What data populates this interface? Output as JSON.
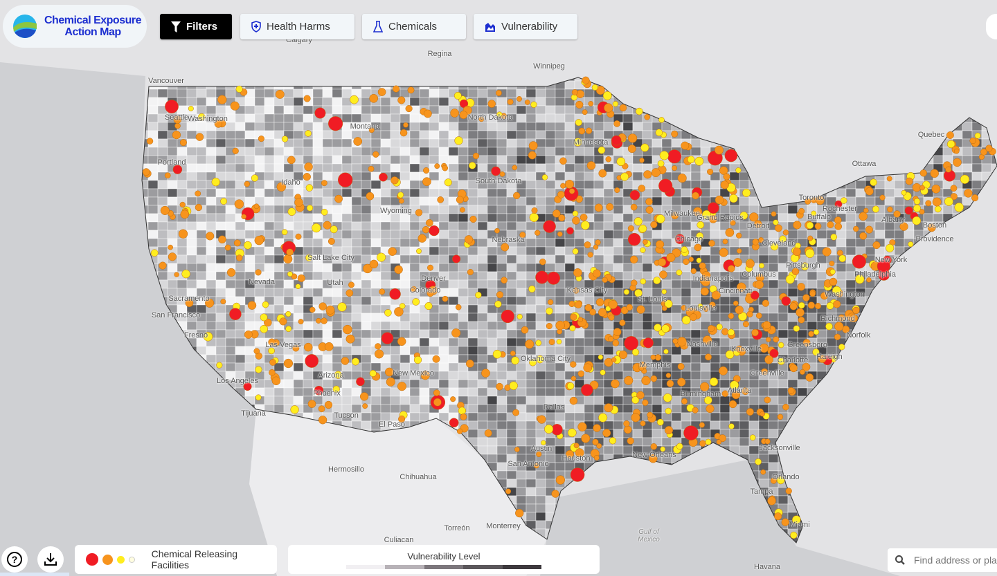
{
  "app": {
    "title_line1": "Chemical Exposure",
    "title_line2": "Action Map"
  },
  "toolbar": {
    "filters": "Filters",
    "health_harms": "Health Harms",
    "chemicals": "Chemicals",
    "vulnerability": "Vulnerability"
  },
  "legend": {
    "facilities_label": "Chemical Releasing Facilities",
    "facility_colors": [
      "#f01c24",
      "#f7941d",
      "#ffed1f",
      "#fffde0"
    ],
    "vulnerability_label": "Vulnerability Level",
    "vulnerability_colors": [
      "#f1eff2",
      "#b7b2b7",
      "#7c777c",
      "#5b575b",
      "#3d393d"
    ]
  },
  "search": {
    "placeholder": "Find address or place"
  },
  "icons": [
    "filter-icon",
    "shield-plus-icon",
    "flask-icon",
    "mountain-icon",
    "help-icon",
    "download-icon",
    "search-icon"
  ],
  "map_labels": {
    "canada": [
      "Calgary",
      "Regina",
      "Winnipeg",
      "Vancouver",
      "Toronto",
      "Ottawa",
      "Quebec"
    ],
    "mexico": [
      "Hermosillo",
      "Chihuahua",
      "Torreón",
      "Monterrey",
      "Culiacan",
      "Havana",
      "Gulf of Mexico"
    ],
    "us": [
      "Seattle",
      "Washington",
      "Portland",
      "Idaho",
      "Montana",
      "North Dakota",
      "Minnesota",
      "South Dakota",
      "Wyoming",
      "Nebraska",
      "Salt Lake City",
      "Utah",
      "Nevada",
      "Denver",
      "Colorado",
      "Kansas City",
      "St. Louis",
      "Chicago",
      "Milwaukee",
      "Grand Rapids",
      "Detroit",
      "Cleveland",
      "Pittsburgh",
      "Columbus",
      "Indianapolis",
      "Cincinnati",
      "Louisville",
      "Nashville",
      "Knoxville",
      "Memphis",
      "Birmingham",
      "Atlanta",
      "Greenville",
      "Charlotte",
      "Greensboro",
      "Raleigh",
      "Richmond",
      "Norfolk",
      "Washington",
      "Philadelphia",
      "New York",
      "Boston",
      "Providence",
      "Albany",
      "Rochester",
      "Buffalo",
      "Jacksonville",
      "Orlando",
      "Tampa",
      "Miami",
      "New Orleans",
      "Houston",
      "Austin",
      "San Antonio",
      "Dallas",
      "Oklahoma City",
      "El Paso",
      "Tucson",
      "Phoenix",
      "Arizona",
      "New Mexico",
      "Las Vegas",
      "Los Angeles",
      "Tijuana",
      "Fresno",
      "San Francisco",
      "Sacramento"
    ]
  }
}
